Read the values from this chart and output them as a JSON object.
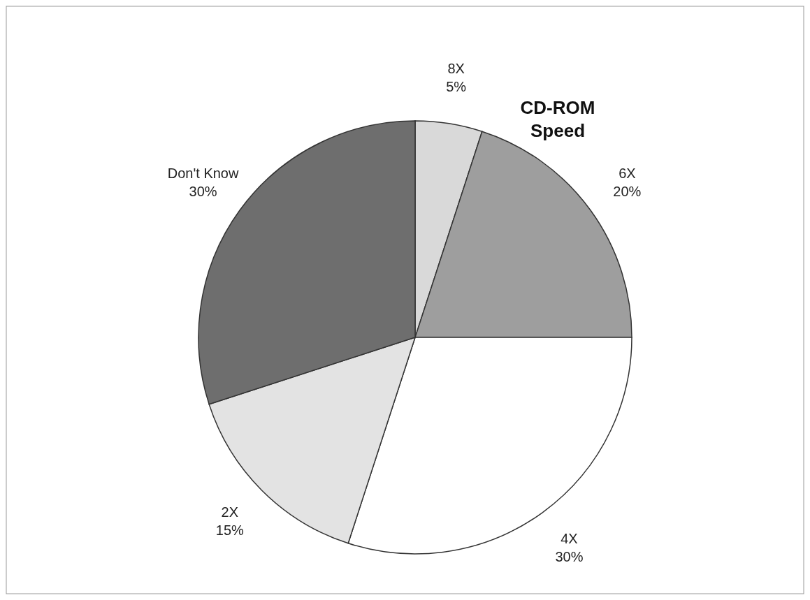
{
  "chart_data": {
    "type": "pie",
    "title": "CD-ROM Speed",
    "categories": [
      "8X",
      "6X",
      "4X",
      "2X",
      "Don't Know"
    ],
    "values": [
      5,
      20,
      30,
      15,
      30
    ],
    "value_labels": [
      "5%",
      "20%",
      "30%",
      "15%",
      "30%"
    ],
    "colors": [
      "#d9d9d9",
      "#9e9e9e",
      "#ffffff",
      "#e3e3e3",
      "#6e6e6e"
    ]
  }
}
